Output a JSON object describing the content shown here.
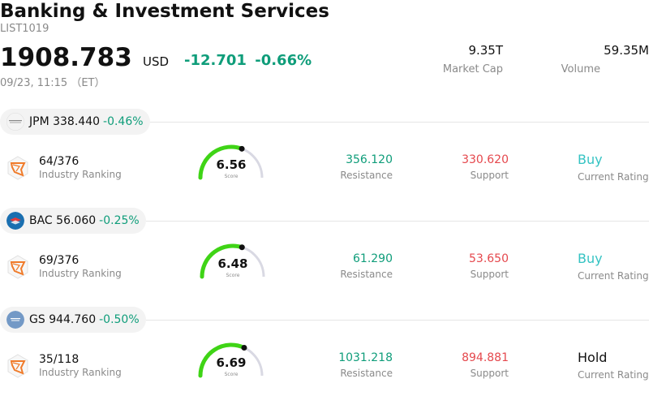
{
  "header": {
    "title": "Banking & Investment Services",
    "code": "LIST1019",
    "price": "1908.783",
    "currency": "USD",
    "change": "-12.701",
    "change_pct": "-0.66%",
    "time": "09/23, 11:15 （ET）",
    "market_cap_value": "9.35T",
    "market_cap_label": "Market Cap",
    "volume_value": "59.35M",
    "volume_label": "Volume"
  },
  "colors": {
    "up": "#0f9d7a",
    "down": "#e5484d",
    "buy": "#35c3c3",
    "gauge": "#3fd416"
  },
  "stocks": [
    {
      "ticker": "JPM",
      "price": "338.440",
      "change_pct": "-0.46%",
      "logo": "jpm-logo",
      "rank": "64/376",
      "rank_label": "Industry Ranking",
      "score": 6.56,
      "score_text": "6.56",
      "score_label": "Score",
      "resistance": "356.120",
      "resistance_label": "Resistance",
      "support": "330.620",
      "support_label": "Support",
      "rating": "Buy",
      "rating_label": "Current Rating"
    },
    {
      "ticker": "BAC",
      "price": "56.060",
      "change_pct": "-0.25%",
      "logo": "bac-logo",
      "rank": "69/376",
      "rank_label": "Industry Ranking",
      "score": 6.48,
      "score_text": "6.48",
      "score_label": "Score",
      "resistance": "61.290",
      "resistance_label": "Resistance",
      "support": "53.650",
      "support_label": "Support",
      "rating": "Buy",
      "rating_label": "Current Rating"
    },
    {
      "ticker": "GS",
      "price": "944.760",
      "change_pct": "-0.50%",
      "logo": "gs-logo",
      "rank": "35/118",
      "rank_label": "Industry Ranking",
      "score": 6.69,
      "score_text": "6.69",
      "score_label": "Score",
      "resistance": "1031.218",
      "resistance_label": "Resistance",
      "support": "894.881",
      "support_label": "Support",
      "rating": "Hold",
      "rating_label": "Current Rating"
    }
  ]
}
